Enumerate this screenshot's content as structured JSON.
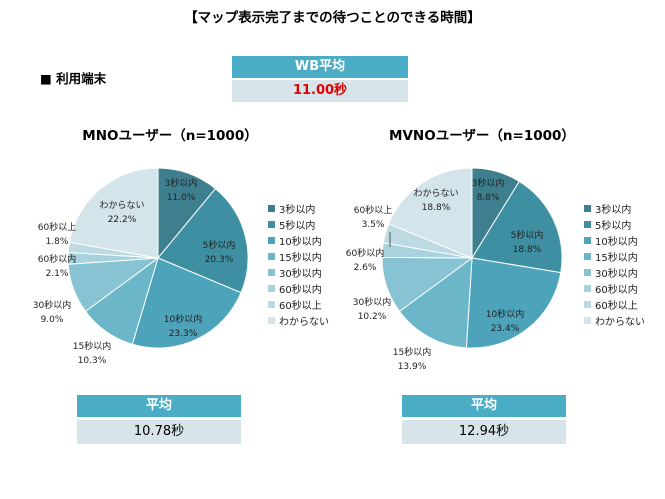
{
  "title": "【マップ表示完了までの待つことのできる時間】",
  "section_label": "■ 利用端末",
  "wb_average": {
    "label": "WB平均",
    "value": "11.00秒"
  },
  "mno_average": {
    "label": "平均",
    "value": "10.78秒"
  },
  "mvno_average": {
    "label": "平均",
    "value": "12.94秒"
  },
  "colors": [
    "#3d7f8f",
    "#3f8fa3",
    "#4da3b9",
    "#6bb6c8",
    "#87c3d3",
    "#a7d2de",
    "#bddae3",
    "#d3e4ea"
  ],
  "chart_data": [
    {
      "type": "pie",
      "title": "MNOユーザー（n=1000）",
      "categories": [
        "3秒以内",
        "5秒以内",
        "10秒以内",
        "15秒以内",
        "30秒以内",
        "60秒以内",
        "60秒以上",
        "わからない"
      ],
      "values": [
        11.0,
        20.3,
        23.3,
        10.3,
        9.0,
        2.1,
        1.8,
        22.2
      ],
      "value_labels": [
        "11.0%",
        "20.3%",
        "23.3%",
        "10.3%",
        "9.0%",
        "2.1%",
        "1.8%",
        "22.2%"
      ],
      "legend": "right"
    },
    {
      "type": "pie",
      "title": "MVNOユーザー（n=1000）",
      "categories": [
        "3秒以内",
        "5秒以内",
        "10秒以内",
        "15秒以内",
        "30秒以内",
        "60秒以内",
        "60秒以上",
        "わからない"
      ],
      "values": [
        8.8,
        18.8,
        23.4,
        13.9,
        10.2,
        2.6,
        3.5,
        18.8
      ],
      "value_labels": [
        "8.8%",
        "18.8%",
        "23.4%",
        "13.9%",
        "10.2%",
        "2.6%",
        "3.5%",
        "18.8%"
      ],
      "legend": "right"
    }
  ]
}
